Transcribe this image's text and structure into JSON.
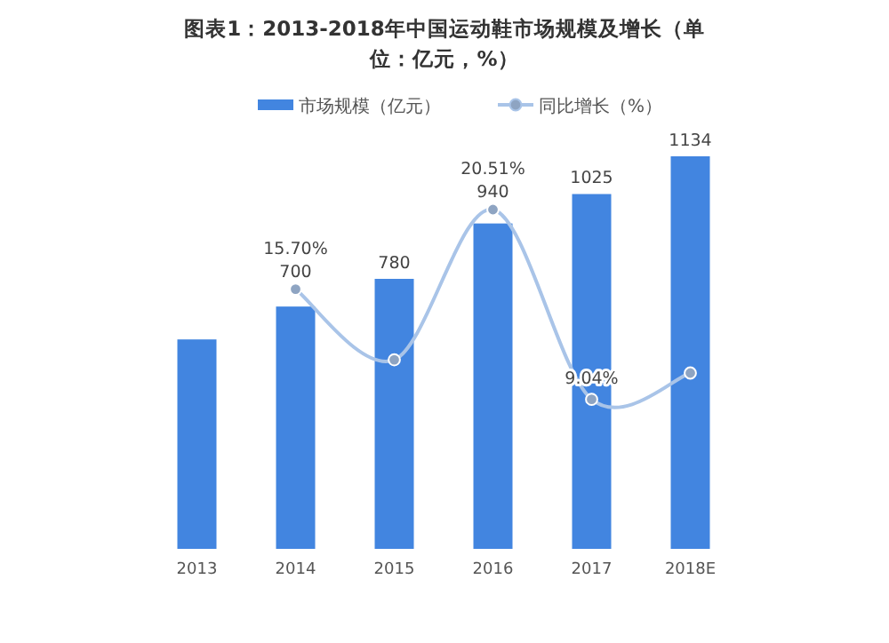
{
  "chart_data": {
    "type": "bar",
    "title": "图表1：2013-2018年中国运动鞋市场规模及增长（单位：亿元，%）",
    "categories": [
      "2013",
      "2014",
      "2015",
      "2016",
      "2017",
      "2018E"
    ],
    "series": [
      {
        "name": "市场规模（亿元）",
        "type": "bar",
        "color": "#4285e0",
        "values": [
          605,
          700,
          780,
          940,
          1025,
          1134
        ],
        "value_labels": [
          null,
          "700",
          "780",
          "940",
          "1025",
          "1134"
        ]
      },
      {
        "name": "同比增长（%）",
        "type": "line",
        "axis": "y2",
        "color": "#a9c4e8",
        "marker": "circle",
        "values": [
          null,
          15.7,
          11.43,
          20.51,
          9.04,
          10.63
        ],
        "value_labels": [
          null,
          "15.70%",
          null,
          "20.51%",
          "9.04%",
          null
        ]
      }
    ],
    "tick_labels": "x",
    "legend": "top",
    "grid": false
  }
}
